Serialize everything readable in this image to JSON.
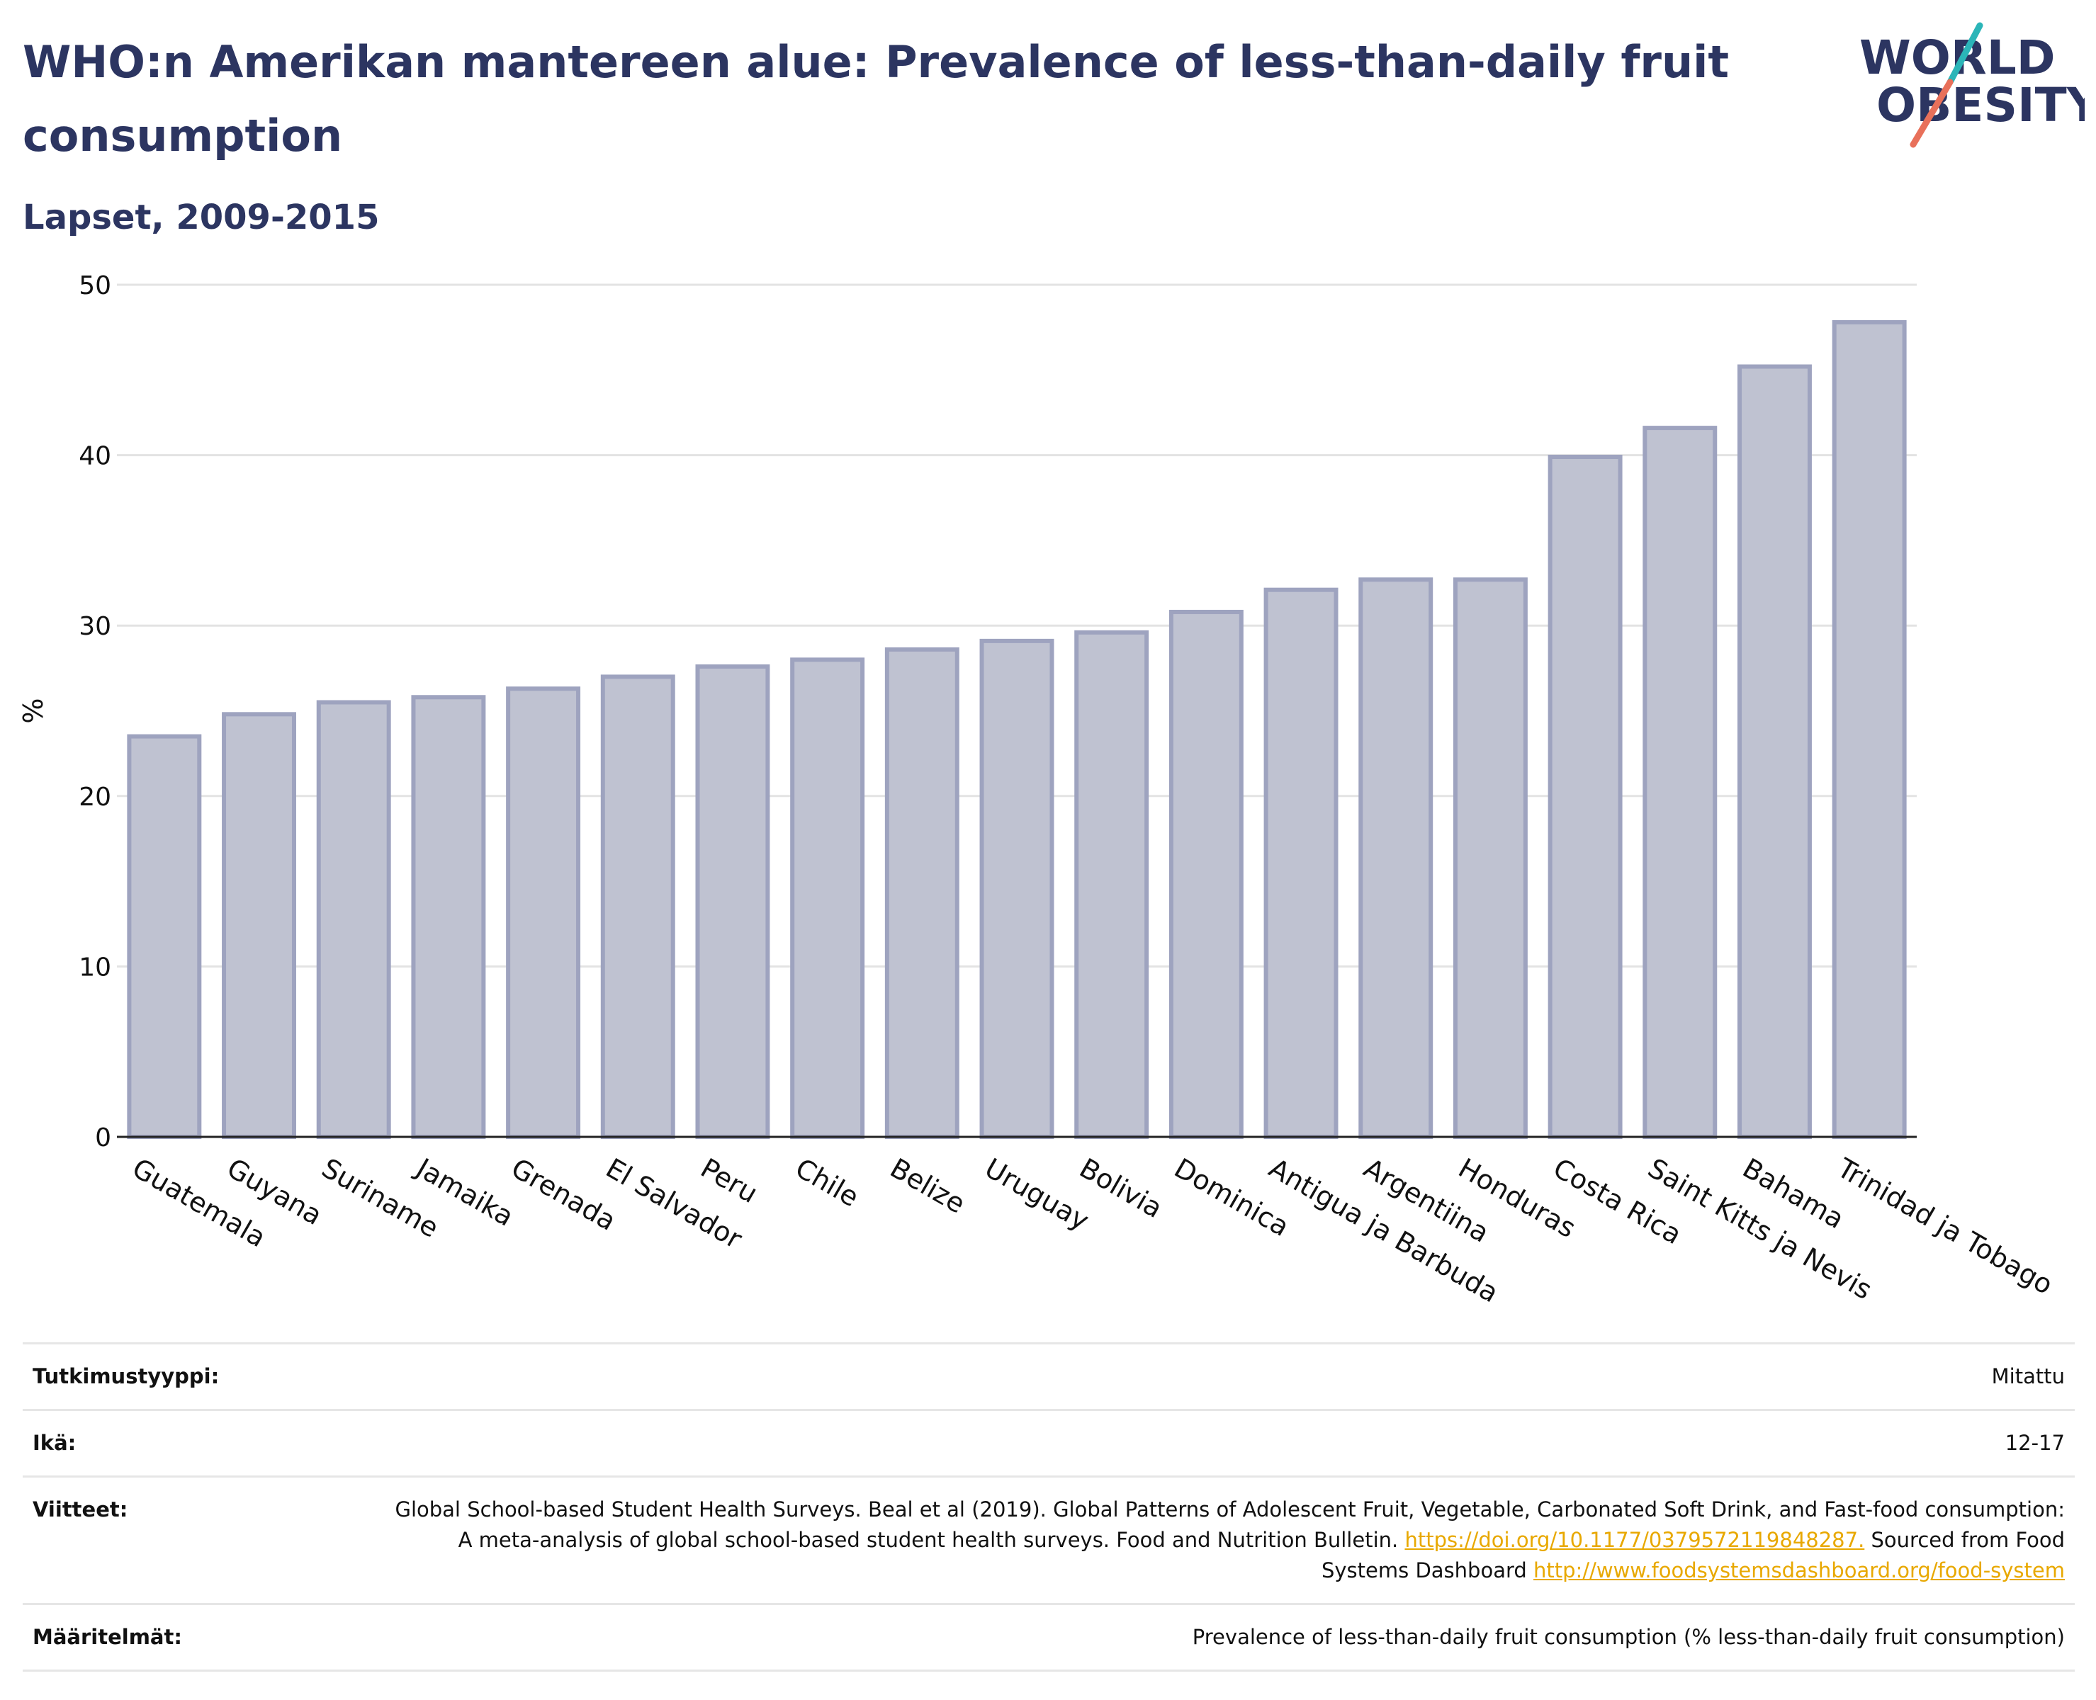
{
  "header": {
    "title": "WHO:n Amerikan mantereen alue: Prevalence of less-than-daily fruit consumption",
    "subtitle": "Lapset, 2009-2015"
  },
  "logo": {
    "line1": "WORLD",
    "line2": "OBESITY",
    "slash_colors": [
      "#2bb5b8",
      "#e8705a"
    ]
  },
  "chart_data": {
    "type": "bar",
    "title": "WHO:n Amerikan mantereen alue: Prevalence of less-than-daily fruit consumption",
    "subtitle": "Lapset, 2009-2015",
    "ylabel": "%",
    "xlabel": "",
    "ylim": [
      0,
      50
    ],
    "yticks": [
      0,
      10,
      20,
      30,
      40,
      50
    ],
    "grid": true,
    "bar_fill": "#bfc2d1",
    "bar_stroke": "#9ea3bf",
    "categories": [
      "Guatemala",
      "Guyana",
      "Suriname",
      "Jamaika",
      "Grenada",
      "El Salvador",
      "Peru",
      "Chile",
      "Belize",
      "Uruguay",
      "Bolivia",
      "Dominica",
      "Antigua ja Barbuda",
      "Argentiina",
      "Honduras",
      "Costa Rica",
      "Saint Kitts ja Nevis",
      "Bahama",
      "Trinidad ja Tobago"
    ],
    "values": [
      23.5,
      24.8,
      25.5,
      25.8,
      26.3,
      27.0,
      27.6,
      28.0,
      28.6,
      29.1,
      29.6,
      30.8,
      32.1,
      32.7,
      32.7,
      39.9,
      41.6,
      45.2,
      47.8
    ]
  },
  "meta": {
    "study_type": {
      "label": "Tutkimustyyppi:",
      "value": "Mitattu"
    },
    "age": {
      "label": "Ikä:",
      "value": "12-17"
    },
    "references": {
      "label": "Viitteet:",
      "text1": "Global School-based Student Health Surveys. Beal et al (2019). Global Patterns of Adolescent Fruit, Vegetable, Carbonated Soft Drink, and Fast-food consumption: A meta-analysis of global school-based student health surveys. Food and Nutrition Bulletin.",
      "link1": "https://doi.org/10.1177/0379572119848287.",
      "text2": "Sourced from Food Systems Dashboard",
      "link2": "http://www.foodsystemsdashboard.org/food-system"
    },
    "definitions": {
      "label": "Määritelmät:",
      "value": "Prevalence of less-than-daily fruit consumption (% less-than-daily fruit consumption)"
    }
  }
}
